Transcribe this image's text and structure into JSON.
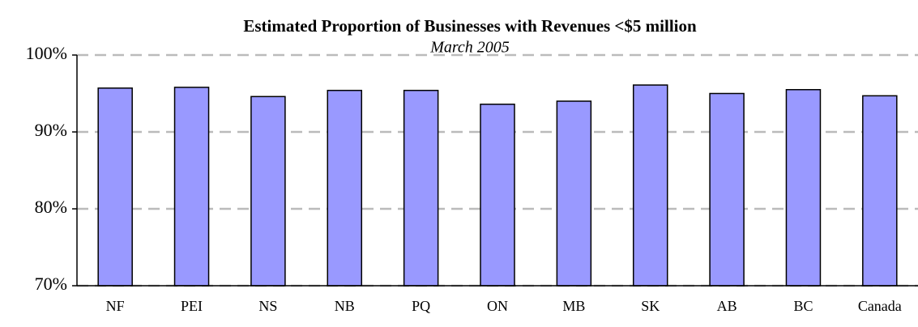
{
  "chart_data": {
    "type": "bar",
    "title": "Estimated Proportion of Businesses with Revenues <$5 million",
    "subtitle": "March 2005",
    "categories": [
      "NF",
      "PEI",
      "NS",
      "NB",
      "PQ",
      "ON",
      "MB",
      "SK",
      "AB",
      "BC",
      "Canada"
    ],
    "values": [
      95.7,
      95.8,
      94.6,
      95.4,
      95.4,
      93.6,
      94.0,
      96.1,
      95.0,
      95.5,
      94.7
    ],
    "color": "#9999ff",
    "ylim": [
      70,
      100
    ],
    "yticks": [
      {
        "value": 70,
        "label": "70%"
      },
      {
        "value": 80,
        "label": "80%"
      },
      {
        "value": 90,
        "label": "90%"
      },
      {
        "value": 100,
        "label": "100%"
      }
    ],
    "grid": true
  }
}
